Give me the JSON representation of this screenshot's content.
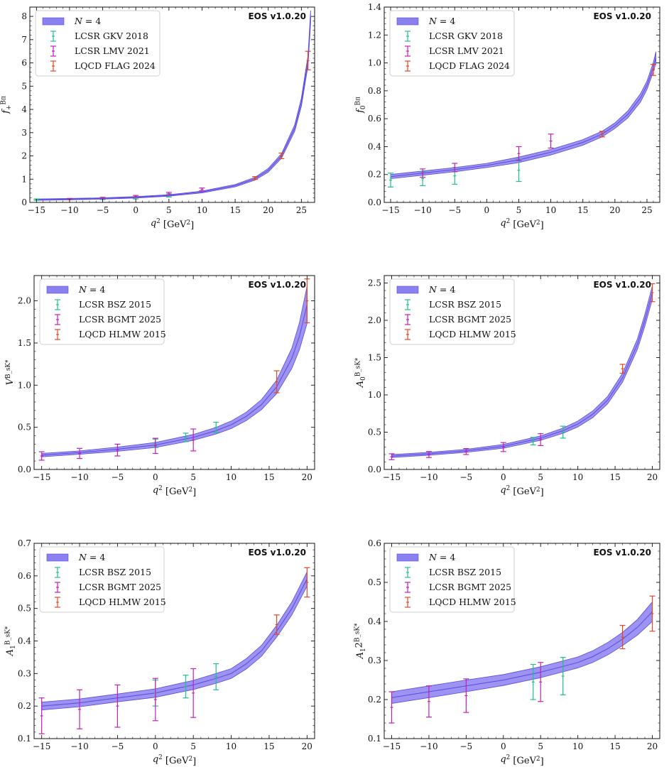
{
  "watermark": "EOS v1.0.20",
  "colors": {
    "band_fill": "#8b80f0",
    "band_line": "#5b4bdc",
    "lcsr_a": "#20c08a",
    "lcsr_b": "#c020b8",
    "lqcd": "#e04828",
    "watermark": "#f4a48a"
  },
  "chart_data": [
    {
      "type": "line",
      "xlabel": "q^2 [GeV^2]",
      "ylabel": "f_+^{Bπ}",
      "xlim": [
        -16,
        27
      ],
      "ylim": [
        0,
        8.4
      ],
      "xticks": [
        -15,
        -10,
        -5,
        0,
        5,
        10,
        15,
        20,
        25
      ],
      "yticks": [
        0,
        1,
        2,
        3,
        4,
        5,
        6,
        7,
        8
      ],
      "ytick_labels": [
        "0",
        "1",
        "2",
        "3",
        "4",
        "5",
        "6",
        "7",
        "8"
      ],
      "legend": [
        "N = 4",
        "LCSR GKV 2018",
        "LCSR LMV 2021",
        "LQCD FLAG 2024"
      ],
      "band": {
        "name": "N = 4",
        "x": [
          -15,
          -10,
          -5,
          0,
          5,
          10,
          15,
          18,
          20,
          22,
          24,
          25,
          26,
          26.4
        ],
        "mid": [
          0.12,
          0.14,
          0.17,
          0.22,
          0.3,
          0.45,
          0.72,
          1.02,
          1.38,
          2.0,
          3.2,
          4.3,
          6.1,
          8.0
        ],
        "hw": [
          0.03,
          0.03,
          0.03,
          0.03,
          0.03,
          0.04,
          0.05,
          0.06,
          0.08,
          0.1,
          0.14,
          0.18,
          0.22,
          0.25
        ]
      },
      "series": [
        {
          "name": "LCSR GKV 2018",
          "points": [
            {
              "x": -15,
              "y": 0.12,
              "err": 0.03
            },
            {
              "x": -10,
              "y": 0.14,
              "err": 0.03
            },
            {
              "x": -5,
              "y": 0.16,
              "err": 0.04
            },
            {
              "x": 0,
              "y": 0.2,
              "err": 0.05
            },
            {
              "x": 5,
              "y": 0.3,
              "err": 0.07
            }
          ]
        },
        {
          "name": "LCSR LMV 2021",
          "points": [
            {
              "x": -10,
              "y": 0.15,
              "err": 0.02
            },
            {
              "x": -5,
              "y": 0.19,
              "err": 0.03
            },
            {
              "x": 0,
              "y": 0.26,
              "err": 0.04
            },
            {
              "x": 5,
              "y": 0.37,
              "err": 0.06
            },
            {
              "x": 10,
              "y": 0.56,
              "err": 0.06
            }
          ]
        },
        {
          "name": "LQCD FLAG 2024",
          "points": [
            {
              "x": 18,
              "y": 1.05,
              "err": 0.06
            },
            {
              "x": 22,
              "y": 2.0,
              "err": 0.12
            },
            {
              "x": 26,
              "y": 6.1,
              "err": 0.4
            }
          ]
        }
      ]
    },
    {
      "type": "line",
      "xlabel": "q^2 [GeV^2]",
      "ylabel": "f_0^{Bπ}",
      "xlim": [
        -16,
        27
      ],
      "ylim": [
        0,
        1.4
      ],
      "xticks": [
        -15,
        -10,
        -5,
        0,
        5,
        10,
        15,
        20,
        25
      ],
      "yticks": [
        0,
        0.2,
        0.4,
        0.6,
        0.8,
        1.0,
        1.2,
        1.4
      ],
      "ytick_labels": [
        "0.0",
        "0.2",
        "0.4",
        "0.6",
        "0.8",
        "1.0",
        "1.2",
        "1.4"
      ],
      "legend": [
        "N = 4",
        "LCSR GKV 2018",
        "LCSR LMV 2021",
        "LQCD FLAG 2024"
      ],
      "band": {
        "name": "N = 4",
        "x": [
          -15,
          -10,
          -5,
          0,
          5,
          10,
          15,
          18,
          20,
          22,
          24,
          25,
          26,
          26.4
        ],
        "mid": [
          0.185,
          0.21,
          0.235,
          0.265,
          0.305,
          0.36,
          0.43,
          0.49,
          0.55,
          0.63,
          0.75,
          0.84,
          0.97,
          1.04
        ],
        "hw": [
          0.015,
          0.015,
          0.015,
          0.015,
          0.02,
          0.02,
          0.02,
          0.02,
          0.02,
          0.025,
          0.03,
          0.03,
          0.035,
          0.04
        ]
      },
      "series": [
        {
          "name": "LCSR GKV 2018",
          "points": [
            {
              "x": -15,
              "y": 0.16,
              "err": 0.05
            },
            {
              "x": -10,
              "y": 0.17,
              "err": 0.05
            },
            {
              "x": -5,
              "y": 0.19,
              "err": 0.06
            },
            {
              "x": 5,
              "y": 0.23,
              "err": 0.08
            }
          ]
        },
        {
          "name": "LCSR LMV 2021",
          "points": [
            {
              "x": -10,
              "y": 0.21,
              "err": 0.03
            },
            {
              "x": -5,
              "y": 0.25,
              "err": 0.03
            },
            {
              "x": 5,
              "y": 0.35,
              "err": 0.05
            },
            {
              "x": 10,
              "y": 0.44,
              "err": 0.05
            }
          ]
        },
        {
          "name": "LQCD FLAG 2024",
          "points": [
            {
              "x": 18,
              "y": 0.49,
              "err": 0.02
            },
            {
              "x": 26,
              "y": 0.95,
              "err": 0.04
            }
          ]
        }
      ]
    },
    {
      "type": "line",
      "xlabel": "q^2 [GeV^2]",
      "ylabel": "V^{B_sK*}",
      "xlim": [
        -16,
        21
      ],
      "ylim": [
        0,
        2.3
      ],
      "xticks": [
        -15,
        -10,
        -5,
        0,
        5,
        10,
        15,
        20
      ],
      "yticks": [
        0,
        0.5,
        1.0,
        1.5,
        2.0
      ],
      "ytick_labels": [
        "0.0",
        "0.5",
        "1.0",
        "1.5",
        "2.0"
      ],
      "legend": [
        "N = 4",
        "LCSR BSZ 2015",
        "LCSR BGMT 2025",
        "LQCD HLMW 2015"
      ],
      "band": {
        "name": "N = 4",
        "x": [
          -15,
          -10,
          -5,
          0,
          5,
          8,
          10,
          12,
          14,
          16,
          18,
          19,
          20
        ],
        "mid": [
          0.17,
          0.2,
          0.24,
          0.29,
          0.38,
          0.46,
          0.53,
          0.63,
          0.77,
          0.98,
          1.32,
          1.58,
          1.95
        ],
        "hw": [
          0.02,
          0.02,
          0.025,
          0.03,
          0.035,
          0.04,
          0.045,
          0.05,
          0.06,
          0.08,
          0.12,
          0.16,
          0.22
        ]
      },
      "series": [
        {
          "name": "LCSR BSZ 2015",
          "points": [
            {
              "x": 0,
              "y": 0.31,
              "err": 0.05
            },
            {
              "x": 4,
              "y": 0.38,
              "err": 0.05
            },
            {
              "x": 8,
              "y": 0.5,
              "err": 0.06
            }
          ]
        },
        {
          "name": "LCSR BGMT 2025",
          "points": [
            {
              "x": -15,
              "y": 0.16,
              "err": 0.05
            },
            {
              "x": -10,
              "y": 0.19,
              "err": 0.06
            },
            {
              "x": -5,
              "y": 0.23,
              "err": 0.07
            },
            {
              "x": 0,
              "y": 0.28,
              "err": 0.09
            },
            {
              "x": 5,
              "y": 0.35,
              "err": 0.13
            }
          ]
        },
        {
          "name": "LQCD HLMW 2015",
          "points": [
            {
              "x": 16,
              "y": 1.04,
              "err": 0.13
            },
            {
              "x": 20,
              "y": 2.0,
              "err": 0.26
            }
          ]
        }
      ]
    },
    {
      "type": "line",
      "xlabel": "q^2 [GeV^2]",
      "ylabel": "A_0^{B_sK*}",
      "xlim": [
        -16,
        21
      ],
      "ylim": [
        0,
        2.6
      ],
      "xticks": [
        -15,
        -10,
        -5,
        0,
        5,
        10,
        15,
        20
      ],
      "yticks": [
        0,
        0.5,
        1.0,
        1.5,
        2.0,
        2.5
      ],
      "ytick_labels": [
        "0.0",
        "0.5",
        "1.0",
        "1.5",
        "2.0",
        "2.5"
      ],
      "legend": [
        "N = 4",
        "LCSR BSZ 2015",
        "LCSR BGMT 2025",
        "LQCD HLMW 2015"
      ],
      "band": {
        "name": "N = 4",
        "x": [
          -15,
          -10,
          -5,
          0,
          5,
          8,
          10,
          12,
          14,
          16,
          18,
          19,
          20
        ],
        "mid": [
          0.18,
          0.21,
          0.25,
          0.31,
          0.42,
          0.52,
          0.61,
          0.74,
          0.93,
          1.23,
          1.68,
          2.0,
          2.37
        ],
        "hw": [
          0.02,
          0.02,
          0.02,
          0.025,
          0.03,
          0.035,
          0.04,
          0.045,
          0.05,
          0.06,
          0.07,
          0.08,
          0.09
        ]
      },
      "series": [
        {
          "name": "LCSR BSZ 2015",
          "points": [
            {
              "x": 4,
              "y": 0.38,
              "err": 0.05
            },
            {
              "x": 8,
              "y": 0.5,
              "err": 0.08
            }
          ]
        },
        {
          "name": "LCSR BGMT 2025",
          "points": [
            {
              "x": -15,
              "y": 0.17,
              "err": 0.04
            },
            {
              "x": -10,
              "y": 0.2,
              "err": 0.04
            },
            {
              "x": -5,
              "y": 0.24,
              "err": 0.04
            },
            {
              "x": 0,
              "y": 0.3,
              "err": 0.06
            },
            {
              "x": 5,
              "y": 0.4,
              "err": 0.08
            }
          ]
        },
        {
          "name": "LQCD HLMW 2015",
          "points": [
            {
              "x": 16,
              "y": 1.35,
              "err": 0.06
            },
            {
              "x": 20,
              "y": 2.37,
              "err": 0.12
            }
          ]
        }
      ]
    },
    {
      "type": "line",
      "xlabel": "q^2 [GeV^2]",
      "ylabel": "A_1^{B_sK*}",
      "xlim": [
        -16,
        21
      ],
      "ylim": [
        0.1,
        0.7
      ],
      "xticks": [
        -15,
        -10,
        -5,
        0,
        5,
        10,
        15,
        20
      ],
      "yticks": [
        0.1,
        0.2,
        0.3,
        0.4,
        0.5,
        0.6,
        0.7
      ],
      "ytick_labels": [
        "0.1",
        "0.2",
        "0.3",
        "0.4",
        "0.5",
        "0.6",
        "0.7"
      ],
      "legend": [
        "N = 4",
        "LCSR BSZ 2015",
        "LCSR BGMT 2025",
        "LQCD HLMW 2015"
      ],
      "band": {
        "name": "N = 4",
        "x": [
          -15,
          -10,
          -5,
          0,
          5,
          8,
          10,
          12,
          14,
          16,
          18,
          20
        ],
        "mid": [
          0.2,
          0.21,
          0.225,
          0.24,
          0.265,
          0.285,
          0.3,
          0.33,
          0.37,
          0.43,
          0.5,
          0.59
        ],
        "hw": [
          0.012,
          0.012,
          0.012,
          0.013,
          0.014,
          0.015,
          0.015,
          0.016,
          0.017,
          0.018,
          0.02,
          0.022
        ]
      },
      "series": [
        {
          "name": "LCSR BSZ 2015",
          "points": [
            {
              "x": 0,
              "y": 0.24,
              "err": 0.04
            },
            {
              "x": 4,
              "y": 0.26,
              "err": 0.035
            },
            {
              "x": 8,
              "y": 0.29,
              "err": 0.04
            }
          ]
        },
        {
          "name": "LCSR BGMT 2025",
          "points": [
            {
              "x": -15,
              "y": 0.17,
              "err": 0.055
            },
            {
              "x": -10,
              "y": 0.19,
              "err": 0.06
            },
            {
              "x": -5,
              "y": 0.2,
              "err": 0.065
            },
            {
              "x": 0,
              "y": 0.22,
              "err": 0.065
            },
            {
              "x": 5,
              "y": 0.24,
              "err": 0.075
            }
          ]
        },
        {
          "name": "LQCD HLMW 2015",
          "points": [
            {
              "x": 16,
              "y": 0.45,
              "err": 0.03
            },
            {
              "x": 20,
              "y": 0.58,
              "err": 0.045
            }
          ]
        }
      ]
    },
    {
      "type": "line",
      "xlabel": "q^2 [GeV^2]",
      "ylabel": "A_12^{B_sK*}",
      "xlim": [
        -16,
        21
      ],
      "ylim": [
        0.1,
        0.6
      ],
      "xticks": [
        -15,
        -10,
        -5,
        0,
        5,
        10,
        15,
        20
      ],
      "yticks": [
        0.1,
        0.2,
        0.3,
        0.4,
        0.5,
        0.6
      ],
      "ytick_labels": [
        "0.1",
        "0.2",
        "0.3",
        "0.4",
        "0.5",
        "0.6"
      ],
      "legend": [
        "N = 4",
        "LCSR BSZ 2015",
        "LCSR BGMT 2025",
        "LQCD HLMW 2015"
      ],
      "band": {
        "name": "N = 4",
        "x": [
          -15,
          -10,
          -5,
          0,
          5,
          8,
          10,
          12,
          14,
          16,
          18,
          20
        ],
        "mid": [
          0.205,
          0.22,
          0.235,
          0.25,
          0.27,
          0.285,
          0.295,
          0.31,
          0.33,
          0.355,
          0.385,
          0.425
        ],
        "hw": [
          0.015,
          0.015,
          0.015,
          0.014,
          0.014,
          0.014,
          0.014,
          0.015,
          0.016,
          0.017,
          0.02,
          0.025
        ]
      },
      "series": [
        {
          "name": "LCSR BSZ 2015",
          "points": [
            {
              "x": 4,
              "y": 0.245,
              "err": 0.045
            },
            {
              "x": 8,
              "y": 0.26,
              "err": 0.048
            }
          ]
        },
        {
          "name": "LCSR BGMT 2025",
          "points": [
            {
              "x": -15,
              "y": 0.18,
              "err": 0.04
            },
            {
              "x": -10,
              "y": 0.195,
              "err": 0.04
            },
            {
              "x": -5,
              "y": 0.21,
              "err": 0.043
            },
            {
              "x": 5,
              "y": 0.245,
              "err": 0.05
            }
          ]
        },
        {
          "name": "LQCD HLMW 2015",
          "points": [
            {
              "x": 16,
              "y": 0.36,
              "err": 0.03
            },
            {
              "x": 20,
              "y": 0.42,
              "err": 0.045
            }
          ]
        }
      ]
    }
  ]
}
